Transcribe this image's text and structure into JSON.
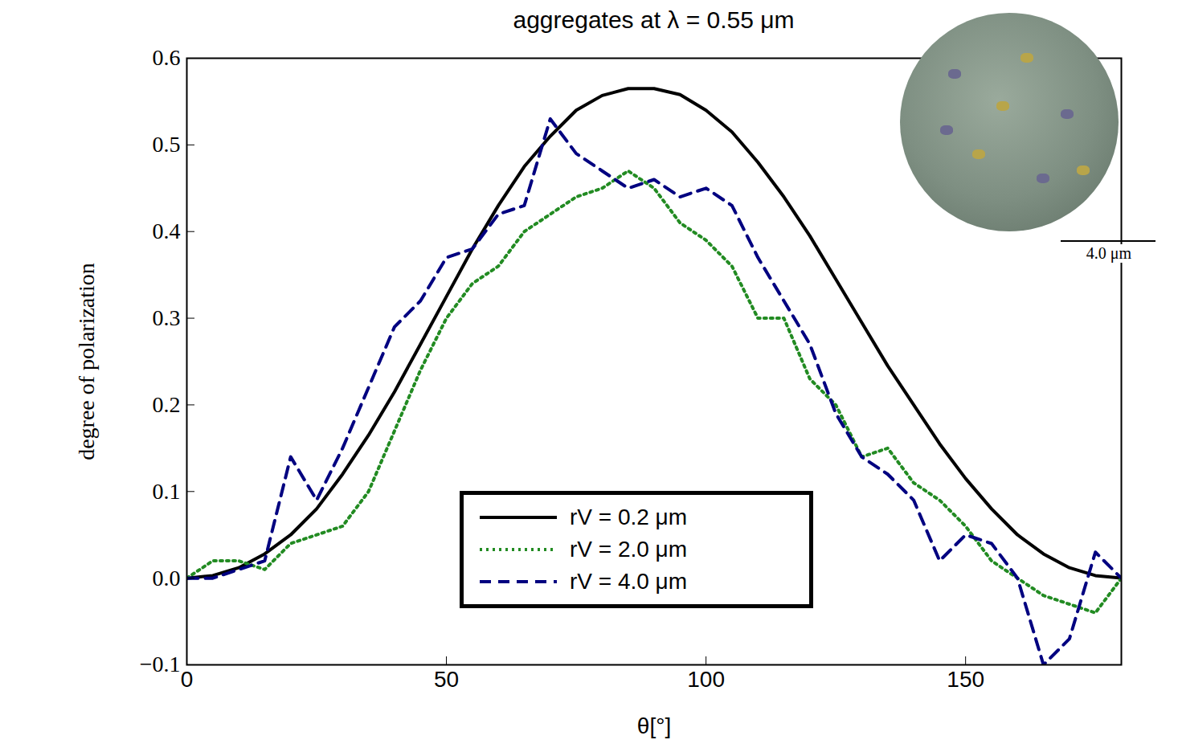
{
  "chart_data": {
    "type": "line",
    "title": "aggregates at λ = 0.55 μm",
    "x_label": "θ[°]",
    "y_label": "degree of polarization",
    "x": [
      0,
      5,
      10,
      15,
      20,
      25,
      30,
      35,
      40,
      45,
      50,
      55,
      60,
      65,
      70,
      75,
      80,
      85,
      90,
      95,
      100,
      105,
      110,
      115,
      120,
      125,
      130,
      135,
      140,
      145,
      150,
      155,
      160,
      165,
      170,
      175,
      180
    ],
    "series": [
      {
        "name": "rV = 0.2 μm",
        "color": "#000000",
        "line_style": "solid",
        "values": [
          0,
          0.003,
          0.012,
          0.028,
          0.05,
          0.08,
          0.12,
          0.165,
          0.215,
          0.27,
          0.325,
          0.38,
          0.43,
          0.475,
          0.51,
          0.54,
          0.557,
          0.565,
          0.565,
          0.558,
          0.54,
          0.515,
          0.48,
          0.44,
          0.395,
          0.345,
          0.295,
          0.245,
          0.2,
          0.155,
          0.115,
          0.08,
          0.05,
          0.028,
          0.012,
          0.003,
          0
        ]
      },
      {
        "name": "rV = 2.0 μm",
        "color": "#228b22",
        "line_style": "dotted",
        "values": [
          0,
          0.02,
          0.02,
          0.01,
          0.04,
          0.05,
          0.06,
          0.1,
          0.17,
          0.24,
          0.3,
          0.34,
          0.36,
          0.4,
          0.42,
          0.44,
          0.45,
          0.47,
          0.45,
          0.41,
          0.39,
          0.36,
          0.3,
          0.3,
          0.23,
          0.2,
          0.14,
          0.15,
          0.11,
          0.09,
          0.06,
          0.02,
          0,
          -0.02,
          -0.03,
          -0.04,
          0
        ]
      },
      {
        "name": "rV = 4.0 μm",
        "color": "#000080",
        "line_style": "dashed",
        "values": [
          0,
          0,
          0.01,
          0.02,
          0.14,
          0.09,
          0.15,
          0.22,
          0.29,
          0.32,
          0.37,
          0.38,
          0.42,
          0.43,
          0.53,
          0.49,
          0.47,
          0.45,
          0.46,
          0.44,
          0.45,
          0.43,
          0.37,
          0.32,
          0.27,
          0.19,
          0.14,
          0.12,
          0.09,
          0.02,
          0.05,
          0.04,
          0,
          -0.1,
          -0.07,
          0.03,
          0
        ]
      }
    ],
    "xlim": [
      0,
      180
    ],
    "xticks": [
      0,
      50,
      100,
      150
    ],
    "ylim": [
      -0.1,
      0.6
    ],
    "yticks": [
      {
        "value": -0.1,
        "label": "−0.1"
      },
      {
        "value": 0,
        "label": "0.0"
      },
      0.1,
      0.2,
      0.3,
      0.4,
      0.5,
      0.6
    ],
    "legend": "bottom",
    "grid": false,
    "annotations": [
      {
        "text": "4.0 μm"
      }
    ]
  }
}
